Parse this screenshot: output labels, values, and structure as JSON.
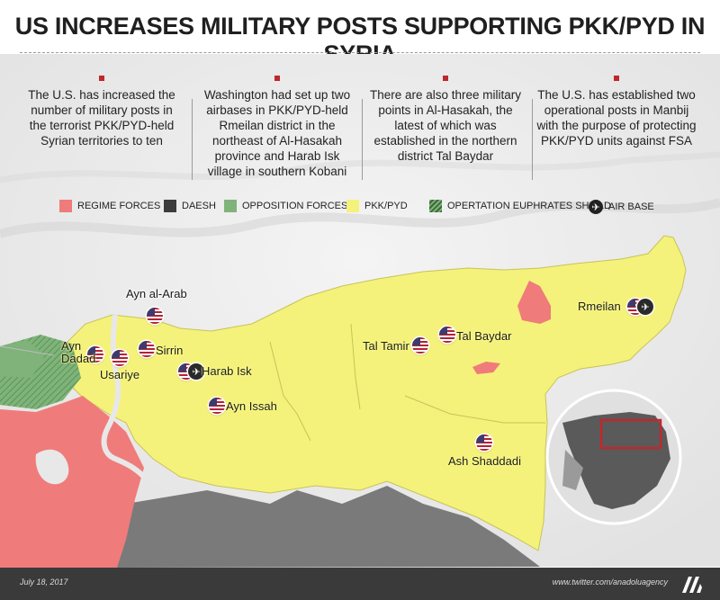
{
  "title": "US INCREASES MILITARY POSTS SUPPORTING PKK/PYD IN SYRIA",
  "info_boxes": [
    "The U.S. has increased the number of military posts in the terrorist PKK/PYD-held Syrian territories to ten",
    "Washington had set up two airbases in PKK/PYD-held Rmeilan district in the northeast of Al-Hasakah province and Harab Isk village in southern Kobani",
    "There are also three military points in Al-Hasakah, the latest of which was established in the northern district Tal Baydar",
    "The U.S. has established two operational posts in Manbij with the purpose of protecting PKK/PYD units against FSA"
  ],
  "legend": [
    {
      "label": "REGIME FORCES",
      "color": "#f07b7b"
    },
    {
      "label": "DAESH",
      "color": "#3c3c3c"
    },
    {
      "label": "OPPOSITION FORCES",
      "color": "#7fb37a"
    },
    {
      "label": "PKK/PYD",
      "color": "#f4f27a"
    },
    {
      "label": "OPERTATION EUPHRATES SHIELD",
      "color": "#7fb37a"
    },
    {
      "label": "AIR BASE",
      "icon": "plane-icon"
    }
  ],
  "places": {
    "ayn_al_arab": "Ayn al-Arab",
    "ayn_dadad": "Ayn\nDadad",
    "sirrin": "Sirrin",
    "usariye": "Usariye",
    "harab_isk": "Harab Isk",
    "ayn_issah": "Ayn Issah",
    "tal_tamir": "Tal Tamir",
    "tal_baydar": "Tal Baydar",
    "rmeilan": "Rmeilan",
    "ash_shaddadi": "Ash Shaddadi"
  },
  "footer": {
    "date": "July 18, 2017",
    "twitter": "www.twitter.com/anadoluagency"
  },
  "colors": {
    "pkk": "#f4f27a",
    "regime": "#f07b7b",
    "daesh": "#7a7a7a",
    "opposition": "#7fb37a",
    "highlight": "#c0272d"
  }
}
